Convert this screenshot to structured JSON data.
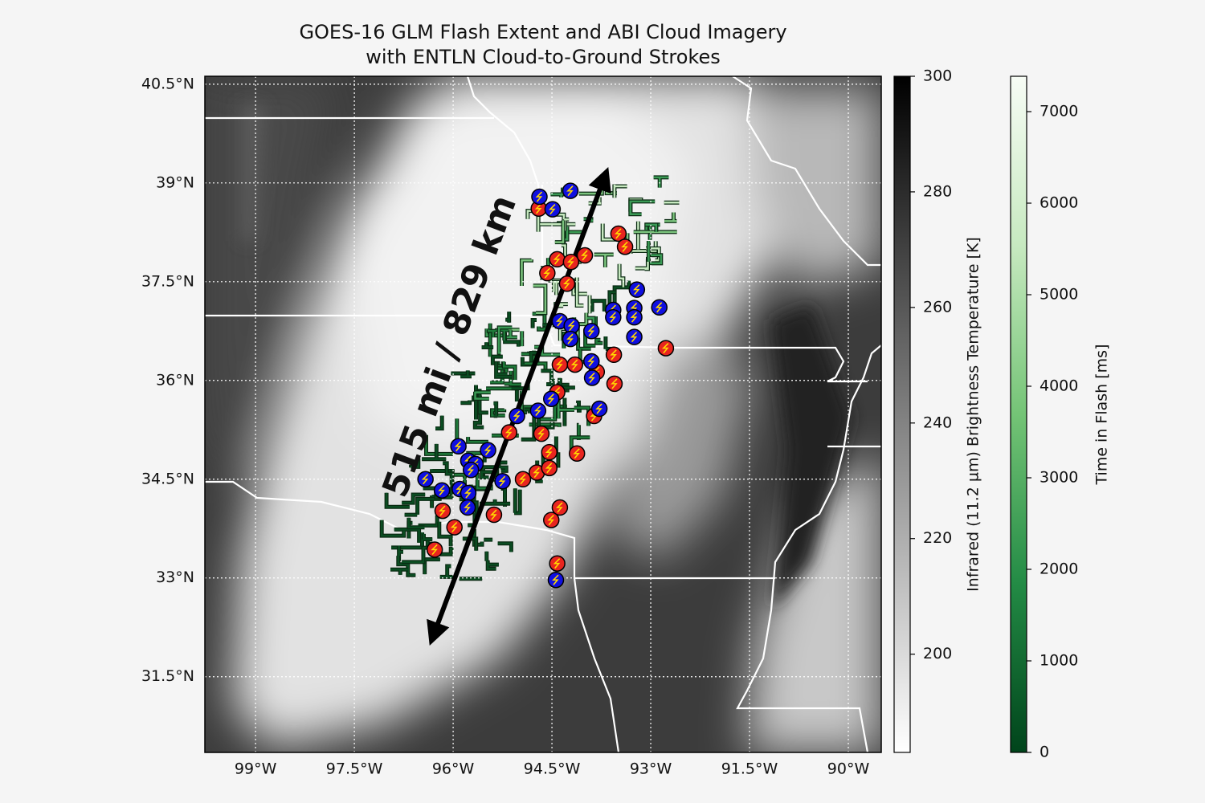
{
  "chart_data": {
    "type": "map",
    "title": "GOES-16 GLM Flash Extent and ABI Cloud Imagery",
    "subtitle": "with ENTLN Cloud-to-Ground Strokes",
    "annotation": "515 mi / 829 km",
    "xlim": [
      -99.77,
      -89.5
    ],
    "ylim": [
      30.35,
      40.62
    ],
    "xticks": [
      {
        "value": -99,
        "label": "99°W"
      },
      {
        "value": -97.5,
        "label": "97.5°W"
      },
      {
        "value": -96,
        "label": "96°W"
      },
      {
        "value": -94.5,
        "label": "94.5°W"
      },
      {
        "value": -93,
        "label": "93°W"
      },
      {
        "value": -91.5,
        "label": "91.5°W"
      },
      {
        "value": -90,
        "label": "90°W"
      }
    ],
    "yticks": [
      {
        "value": 31.5,
        "label": "31.5°N"
      },
      {
        "value": 33,
        "label": "33°N"
      },
      {
        "value": 34.5,
        "label": "34.5°N"
      },
      {
        "value": 36,
        "label": "36°N"
      },
      {
        "value": 37.5,
        "label": "37.5°N"
      },
      {
        "value": 39,
        "label": "39°N"
      },
      {
        "value": 40.5,
        "label": "40.5°N"
      }
    ],
    "grid": true,
    "strokes": [
      {
        "color": "#e8251f",
        "lon": [
          -94.7,
          -93.49,
          -93.39,
          -94.42,
          -94.21,
          -94.0,
          -94.57,
          -94.27,
          -92.77,
          -93.56,
          -94.38,
          -94.15,
          -93.82,
          -93.55,
          -94.42,
          -93.86,
          -95.15,
          -94.66,
          -94.54,
          -94.12,
          -94.94,
          -94.73,
          -94.54,
          -94.38,
          -94.51,
          -95.38,
          -96.16,
          -95.98,
          -96.28,
          -94.42
        ],
        "lat": [
          38.61,
          38.23,
          38.03,
          37.84,
          37.8,
          37.9,
          37.63,
          37.47,
          36.49,
          36.39,
          36.24,
          36.24,
          36.13,
          35.95,
          35.82,
          35.46,
          35.21,
          35.19,
          34.91,
          34.89,
          34.5,
          34.6,
          34.67,
          34.07,
          33.88,
          33.96,
          34.02,
          33.77,
          33.43,
          33.22
        ]
      },
      {
        "color": "#1010e0",
        "lon": [
          -94.69,
          -94.22,
          -94.49,
          -93.21,
          -92.87,
          -93.57,
          -93.25,
          -93.57,
          -93.25,
          -94.38,
          -94.2,
          -93.9,
          -94.22,
          -93.25,
          -93.9,
          -93.89,
          -94.51,
          -94.71,
          -93.78,
          -95.03,
          -95.92,
          -95.47,
          -95.77,
          -95.66,
          -95.73,
          -96.42,
          -95.25,
          -96.17,
          -95.9,
          -95.77,
          -95.78,
          -94.44
        ],
        "lat": [
          38.79,
          38.88,
          38.6,
          37.38,
          37.11,
          37.07,
          37.1,
          36.96,
          36.96,
          36.9,
          36.83,
          36.75,
          36.63,
          36.66,
          36.29,
          36.04,
          35.72,
          35.54,
          35.57,
          35.46,
          35.0,
          34.94,
          34.78,
          34.73,
          34.64,
          34.5,
          34.47,
          34.33,
          34.35,
          34.29,
          34.07,
          32.97
        ]
      }
    ],
    "colorbars": [
      {
        "label": "Infrared (11.2 µm) Brightness Temperature [K]",
        "ylim": [
          183,
          300
        ],
        "yticks": [
          200,
          220,
          240,
          260,
          280,
          300
        ],
        "colors": [
          "#ffffff",
          "#000000"
        ]
      },
      {
        "label": "Time in Flash [ms]",
        "ylim": [
          0,
          7386
        ],
        "yticks": [
          0,
          1000,
          2000,
          3000,
          4000,
          5000,
          6000,
          7000
        ],
        "colors": [
          "#00441b",
          "#238b45",
          "#74c476",
          "#c7e9c0",
          "#f7fcf5"
        ]
      }
    ]
  }
}
